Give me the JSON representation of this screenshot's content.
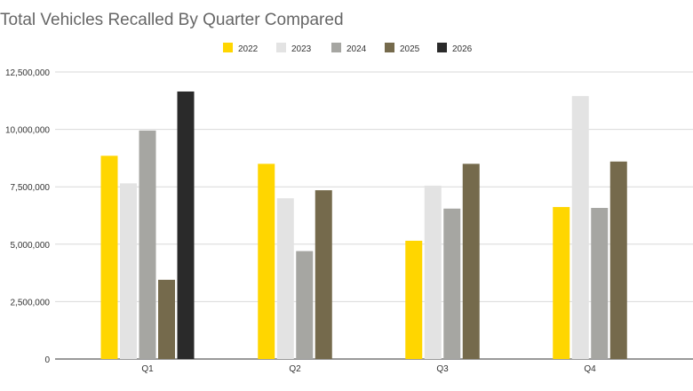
{
  "chart_data": {
    "type": "bar",
    "title": "Total Vehicles Recalled By Quarter Compared",
    "categories": [
      "Q1",
      "Q2",
      "Q3",
      "Q4"
    ],
    "series": [
      {
        "name": "2022",
        "color": "#FFD600",
        "values": [
          8850000,
          8500000,
          5150000,
          6620000
        ]
      },
      {
        "name": "2023",
        "color": "#E3E3E3",
        "values": [
          7650000,
          7000000,
          7550000,
          11450000
        ]
      },
      {
        "name": "2024",
        "color": "#A6A6A2",
        "values": [
          9950000,
          4700000,
          6550000,
          6580000
        ]
      },
      {
        "name": "2025",
        "color": "#756A4C",
        "values": [
          3450000,
          7350000,
          8500000,
          8600000
        ]
      },
      {
        "name": "2026",
        "color": "#2A2A2A",
        "values": [
          11650000,
          null,
          null,
          null
        ]
      }
    ],
    "yticks": [
      "0",
      "2,500,000",
      "5,000,000",
      "7,500,000",
      "10,000,000",
      "12,500,000"
    ],
    "ylim": [
      0,
      12500000
    ],
    "grid": true,
    "legend_position": "top-center"
  }
}
